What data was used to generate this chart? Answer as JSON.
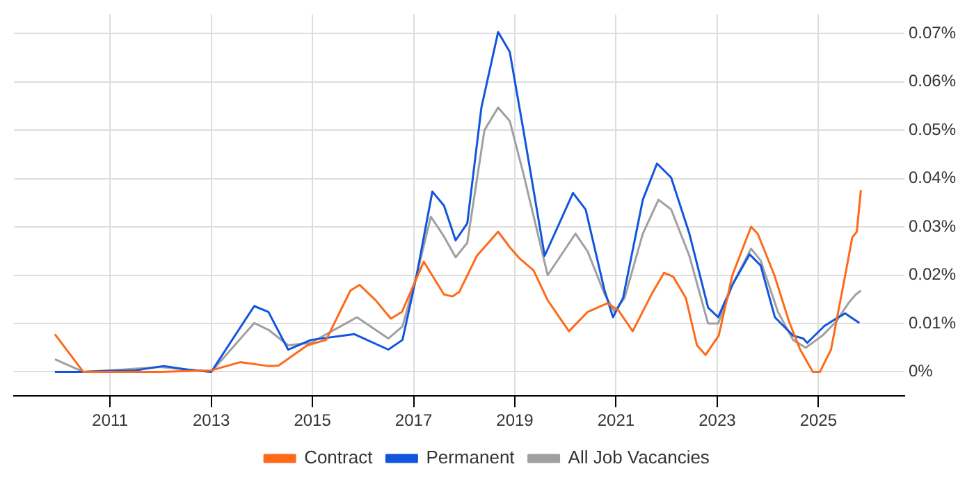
{
  "chart_data": {
    "type": "line",
    "legend": "bottom",
    "grid": true,
    "marker": "none",
    "line_style": "solid",
    "xlim": [
      2009.1,
      2026.7
    ],
    "xticks": [
      2011,
      2013,
      2015,
      2017,
      2019,
      2021,
      2023,
      2025
    ],
    "ylim": [
      -0.005,
      0.074
    ],
    "yticks": [
      {
        "value": 0,
        "label": "0%"
      },
      {
        "value": 0.01,
        "label": "0.01%"
      },
      {
        "value": 0.02,
        "label": "0.02%"
      },
      {
        "value": 0.03,
        "label": "0.03%"
      },
      {
        "value": 0.04,
        "label": "0.04%"
      },
      {
        "value": 0.05,
        "label": "0.05%"
      },
      {
        "value": 0.06,
        "label": "0.06%"
      },
      {
        "value": 0.07,
        "label": "0.07%"
      }
    ],
    "series": [
      {
        "name": "Contract",
        "color": "#ff6a1a",
        "x": [
          2009.91,
          2010.47,
          2011,
          2012,
          2013,
          2013.57,
          2014.13,
          2014.33,
          2014.9,
          2015.27,
          2015.75,
          2015.93,
          2016.25,
          2016.55,
          2016.77,
          2017.2,
          2017.6,
          2017.77,
          2017.9,
          2018.25,
          2018.67,
          2018.9,
          2019.1,
          2019.37,
          2019.65,
          2020.07,
          2020.44,
          2020.83,
          2021.05,
          2021.33,
          2021.7,
          2021.95,
          2022.13,
          2022.38,
          2022.6,
          2022.77,
          2023.03,
          2023.3,
          2023.67,
          2023.8,
          2024.13,
          2024.42,
          2024.64,
          2024.89,
          2025.03,
          2025.25,
          2025.53,
          2025.67,
          2025.76,
          2025.84
        ],
        "values": [
          0.0078,
          0,
          0,
          0,
          0.0003,
          0.002,
          0.0012,
          0.0013,
          0.0055,
          0.0066,
          0.0168,
          0.018,
          0.0148,
          0.011,
          0.0124,
          0.0228,
          0.016,
          0.0156,
          0.0165,
          0.024,
          0.029,
          0.0258,
          0.0234,
          0.021,
          0.0148,
          0.0084,
          0.0124,
          0.0142,
          0.0127,
          0.0084,
          0.016,
          0.0205,
          0.0197,
          0.0153,
          0.0055,
          0.0035,
          0.0075,
          0.02,
          0.03,
          0.0286,
          0.02,
          0.0104,
          0.0046,
          0,
          0,
          0.0046,
          0.02,
          0.0278,
          0.029,
          0.0376
        ]
      },
      {
        "name": "Permanent",
        "color": "#1155dd",
        "x": [
          2009.91,
          2010.47,
          2011,
          2011.5,
          2012.06,
          2012.5,
          2013,
          2013.85,
          2014.13,
          2014.52,
          2014.97,
          2015.83,
          2016.5,
          2016.78,
          2017.06,
          2017.37,
          2017.6,
          2017.83,
          2018.06,
          2018.34,
          2018.67,
          2018.9,
          2019.17,
          2019.59,
          2020.15,
          2020.4,
          2020.77,
          2020.94,
          2021.14,
          2021.53,
          2021.81,
          2022.09,
          2022.45,
          2022.82,
          2023.02,
          2023.3,
          2023.64,
          2023.86,
          2024.14,
          2024.5,
          2024.7,
          2024.78,
          2025.12,
          2025.35,
          2025.53,
          2025.81
        ],
        "values": [
          0,
          0,
          0.0002,
          0.0003,
          0.0012,
          0.0005,
          0,
          0.0136,
          0.0124,
          0.0046,
          0.0066,
          0.0078,
          0.0046,
          0.0066,
          0.02,
          0.0373,
          0.0344,
          0.0272,
          0.0307,
          0.0547,
          0.0703,
          0.0662,
          0.05,
          0.024,
          0.037,
          0.0336,
          0.017,
          0.0113,
          0.0153,
          0.0356,
          0.0431,
          0.0402,
          0.0286,
          0.0133,
          0.0113,
          0.018,
          0.0243,
          0.022,
          0.0113,
          0.0075,
          0.0069,
          0.006,
          0.0095,
          0.011,
          0.0121,
          0.0101
        ]
      },
      {
        "name": "All Job Vacancies",
        "color": "#a0a0a0",
        "x": [
          2009.91,
          2010.47,
          2011,
          2012,
          2013,
          2013.85,
          2014.13,
          2014.52,
          2014.97,
          2015.38,
          2015.88,
          2016.5,
          2016.78,
          2017.06,
          2017.34,
          2017.6,
          2017.83,
          2018.06,
          2018.4,
          2018.67,
          2018.9,
          2019.17,
          2019.65,
          2020.2,
          2020.44,
          2020.77,
          2020.97,
          2021.17,
          2021.53,
          2021.84,
          2022.09,
          2022.45,
          2022.82,
          2023.02,
          2023.3,
          2023.67,
          2023.86,
          2024.2,
          2024.5,
          2024.75,
          2025.08,
          2025.35,
          2025.6,
          2025.74,
          2025.84
        ],
        "values": [
          0.0026,
          0,
          0.0003,
          0.001,
          0,
          0.0101,
          0.0087,
          0.0055,
          0.006,
          0.0084,
          0.0113,
          0.0069,
          0.0094,
          0.02,
          0.0321,
          0.028,
          0.0237,
          0.0267,
          0.05,
          0.0547,
          0.0519,
          0.041,
          0.02,
          0.0286,
          0.0249,
          0.0162,
          0.0124,
          0.0153,
          0.0286,
          0.0356,
          0.0336,
          0.024,
          0.01,
          0.01,
          0.018,
          0.0255,
          0.023,
          0.0124,
          0.0066,
          0.005,
          0.0075,
          0.0104,
          0.0143,
          0.016,
          0.0168
        ]
      }
    ]
  }
}
